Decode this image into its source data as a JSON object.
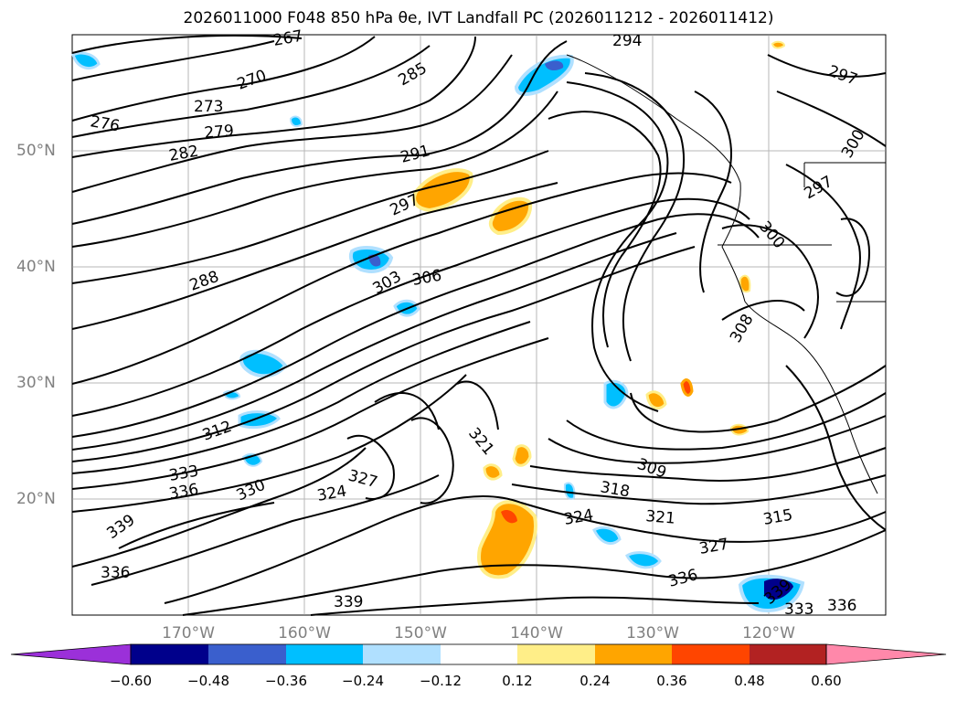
{
  "title": "2026011000 F048 850 hPa θe, IVT Landfall PC (2026011212 - 2026011412)",
  "map": {
    "lat_labels": [
      "50°N",
      "40°N",
      "30°N",
      "20°N"
    ],
    "lon_labels": [
      "170°W",
      "160°W",
      "150°W",
      "140°W",
      "130°W",
      "120°W"
    ],
    "contour_labels": [
      "267",
      "270",
      "273",
      "276",
      "279",
      "282",
      "285",
      "288",
      "291",
      "294",
      "297",
      "297",
      "297",
      "300",
      "300",
      "303",
      "306",
      "308",
      "309",
      "312",
      "315",
      "318",
      "321",
      "321",
      "324",
      "324",
      "327",
      "327",
      "330",
      "333",
      "333",
      "336",
      "336",
      "336",
      "336",
      "339",
      "339",
      "339"
    ]
  },
  "colorbar": {
    "ticks": [
      "−0.60",
      "−0.48",
      "−0.36",
      "−0.24",
      "−0.12",
      "0.12",
      "0.24",
      "0.36",
      "0.48",
      "0.60"
    ],
    "colors": [
      "#9b30d9",
      "#00008b",
      "#3a5fcd",
      "#00bfff",
      "#b0e0ff",
      "#ffffff",
      "#ffee88",
      "#ffa500",
      "#ff4500",
      "#b22222",
      "#ff88aa"
    ]
  },
  "colors": {
    "negative_fill": "#00bfff",
    "negative_light": "#b0e0ff",
    "positive_fill": "#ffa500",
    "positive_light": "#ffee88",
    "strong_positive": "#ff4500",
    "strong_negative": "#3a5fcd"
  }
}
